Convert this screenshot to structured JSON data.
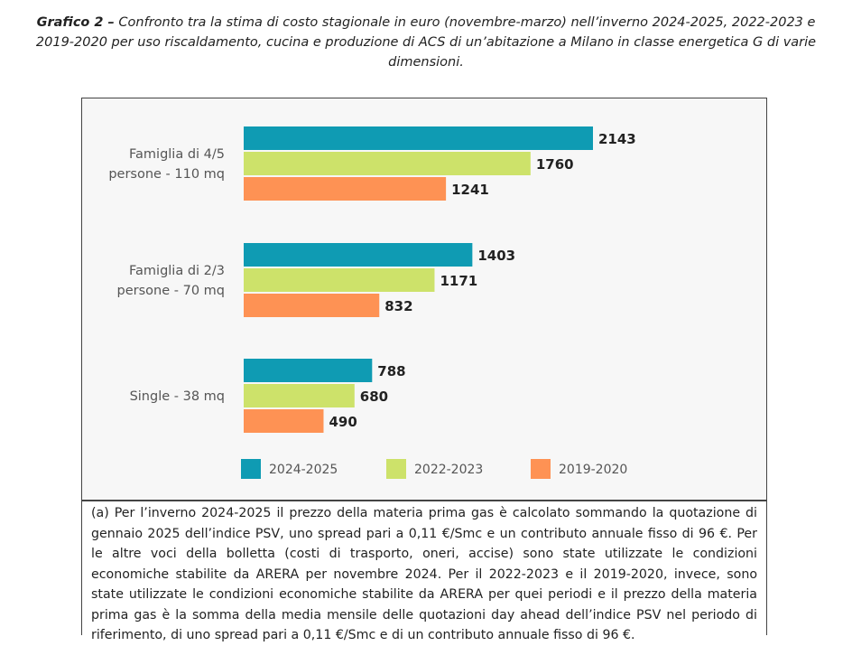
{
  "caption": {
    "label": "Grafico 2 –",
    "text": "Confronto tra la stima di costo stagionale in euro (novembre-marzo) nell’inverno 2024-2025, 2022-2023 e 2019-2020 per uso riscaldamento, cucina e produzione di ACS di un’abitazione a Milano in classe energetica G di varie dimensioni."
  },
  "chart_data": {
    "type": "bar",
    "orientation": "horizontal",
    "categories": [
      [
        "Famiglia di 4/5",
        "persone - 110 mq"
      ],
      [
        "Famiglia di 2/3",
        "persone - 70 mq"
      ],
      [
        "Single - 38 mq"
      ]
    ],
    "series": [
      {
        "name": "2024-2025",
        "color": "#0f9bb3",
        "values": [
          2143,
          1403,
          788
        ]
      },
      {
        "name": "2022-2023",
        "color": "#cde26a",
        "values": [
          1760,
          1171,
          680
        ]
      },
      {
        "name": "2019-2020",
        "color": "#fe9254",
        "values": [
          1241,
          832,
          490
        ]
      }
    ],
    "xlim": [
      0,
      2143
    ],
    "grid": false,
    "legend_position": "bottom",
    "data_labels": true
  },
  "footnote": "(a) Per l’inverno 2024-2025 il prezzo della materia prima gas è calcolato sommando la quotazione di gennaio 2025 dell’indice PSV, uno spread pari a 0,11 €/Smc e un contributo annuale fisso di 96 €. Per le altre voci della bolletta (costi di trasporto, oneri, accise) sono state utilizzate le condizioni economiche stabilite da ARERA per novembre 2024. Per il 2022-2023 e il 2019-2020, invece, sono state utilizzate le condizioni economiche stabilite da ARERA per quei periodi e il prezzo della materia prima gas è la somma della media mensile delle quotazioni day ahead dell’indice PSV nel periodo di riferimento, di uno spread pari a 0,11 €/Smc e di un contributo annuale fisso di 96 €."
}
